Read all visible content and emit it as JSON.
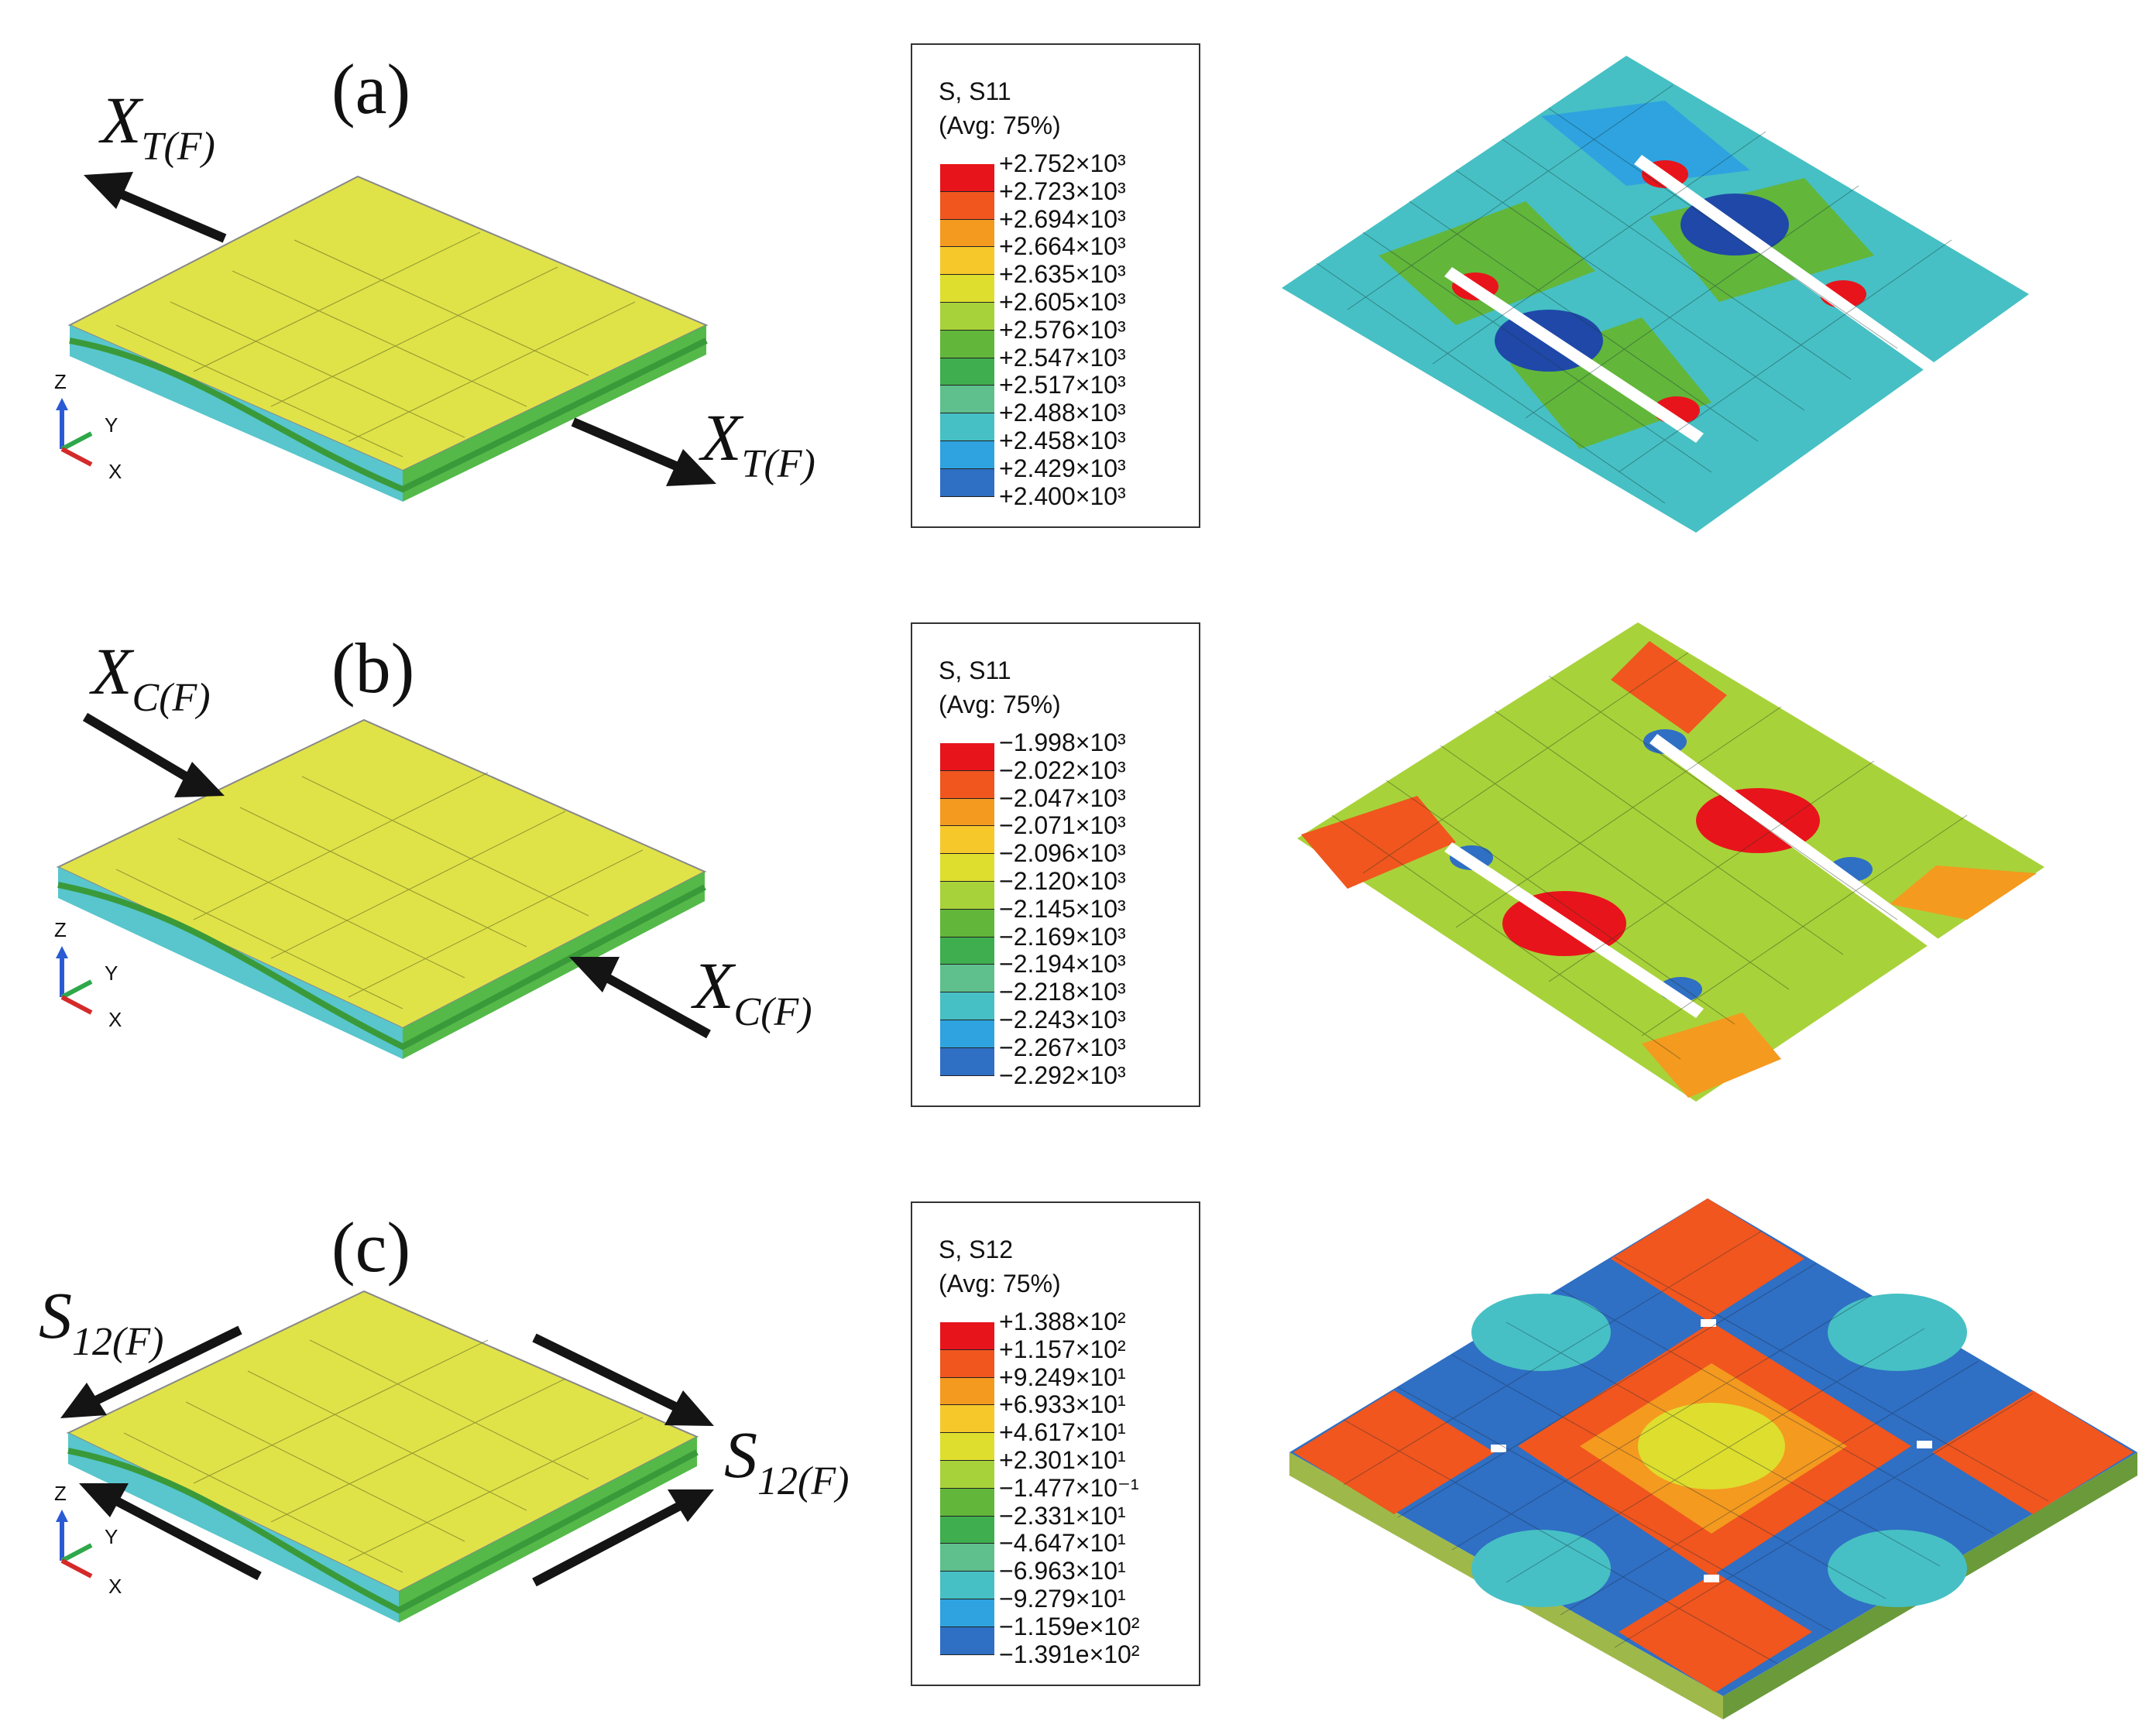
{
  "panels": [
    {
      "label": "(a)",
      "load_labels": [
        {
          "main": "X",
          "sub": "T(F)"
        },
        {
          "main": "X",
          "sub": "T(F)"
        }
      ],
      "legend": {
        "title": "S, S11",
        "subtitle": "(Avg: 75%)",
        "values": [
          "+2.752×10³",
          "+2.723×10³",
          "+2.694×10³",
          "+2.664×10³",
          "+2.635×10³",
          "+2.605×10³",
          "+2.576×10³",
          "+2.547×10³",
          "+2.517×10³",
          "+2.488×10³",
          "+2.458×10³",
          "+2.429×10³",
          "+2.400×10³"
        ]
      }
    },
    {
      "label": "(b)",
      "load_labels": [
        {
          "main": "X",
          "sub": "C(F)"
        },
        {
          "main": "X",
          "sub": "C(F)"
        }
      ],
      "legend": {
        "title": "S, S11",
        "subtitle": "(Avg: 75%)",
        "values": [
          "−1.998×10³",
          "−2.022×10³",
          "−2.047×10³",
          "−2.071×10³",
          "−2.096×10³",
          "−2.120×10³",
          "−2.145×10³",
          "−2.169×10³",
          "−2.194×10³",
          "−2.218×10³",
          "−2.243×10³",
          "−2.267×10³",
          "−2.292×10³"
        ]
      }
    },
    {
      "label": "(c)",
      "load_labels": [
        {
          "main": "S",
          "sub": "12(F)"
        },
        {
          "main": "S",
          "sub": "12(F)"
        }
      ],
      "legend": {
        "title": "S, S12",
        "subtitle": "(Avg: 75%)",
        "values": [
          "+1.388×10²",
          "+1.157×10²",
          "+9.249×10¹",
          "+6.933×10¹",
          "+4.617×10¹",
          "+2.301×10¹",
          "−1.477×10⁻¹",
          "−2.331×10¹",
          "−4.647×10¹",
          "−6.963×10¹",
          "−9.279×10¹",
          "−1.159e×10²",
          "−1.391e×10²"
        ]
      }
    }
  ],
  "axis_triad": {
    "z": "Z",
    "y": "Y",
    "x": "X"
  },
  "colors": {
    "contour_scale": [
      "#e8141b",
      "#f0561e",
      "#f49a1f",
      "#f6c82a",
      "#dede2e",
      "#a8d23a",
      "#62b63a",
      "#3fae4e",
      "#5fbf8d",
      "#46c0c4",
      "#2ea3e0",
      "#2f6fc4",
      "#1f48a8"
    ],
    "specimen_top": "#e0e348",
    "specimen_mid": "#58c6cc",
    "specimen_green": "#54b948",
    "arrow": "#141414"
  }
}
